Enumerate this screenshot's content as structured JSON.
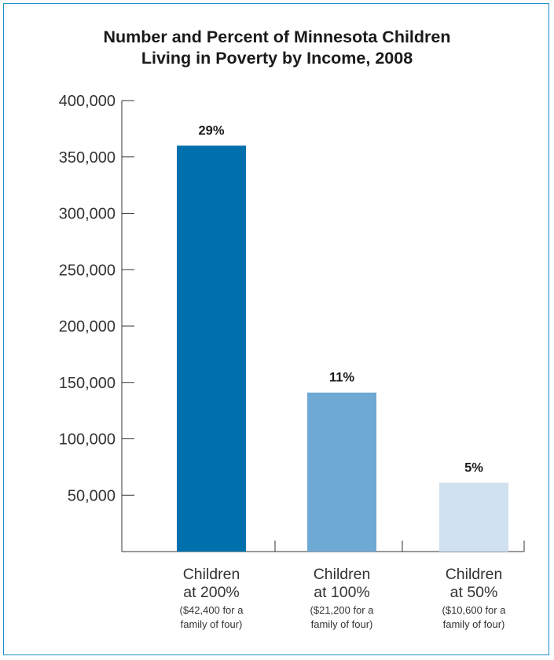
{
  "chart_data": {
    "type": "bar",
    "title_lines": [
      "Number and Percent of Minnesota Children",
      "Living in Poverty by Income, 2008"
    ],
    "ylim": [
      0,
      400000
    ],
    "yticks": [
      50000,
      100000,
      150000,
      200000,
      250000,
      300000,
      350000,
      400000
    ],
    "ytick_labels": [
      "50,000",
      "100,000",
      "150,000",
      "200,000",
      "250,000",
      "300,000",
      "350,000",
      "400,000"
    ],
    "categories": [
      {
        "line1": "Children",
        "line2": "at 200%",
        "sub1": "($42,400 for a",
        "sub2": "family of four)"
      },
      {
        "line1": "Children",
        "line2": "at 100%",
        "sub1": "($21,200 for a",
        "sub2": "family of four)"
      },
      {
        "line1": "Children",
        "line2": "at 50%",
        "sub1": "($10,600 for a",
        "sub2": "family of four)"
      }
    ],
    "values": [
      360000,
      141000,
      61000
    ],
    "data_labels": [
      "29%",
      "11%",
      "5%"
    ],
    "colors": [
      "#0070ad",
      "#6ea9d3",
      "#cfe0ef"
    ],
    "grid": false
  }
}
